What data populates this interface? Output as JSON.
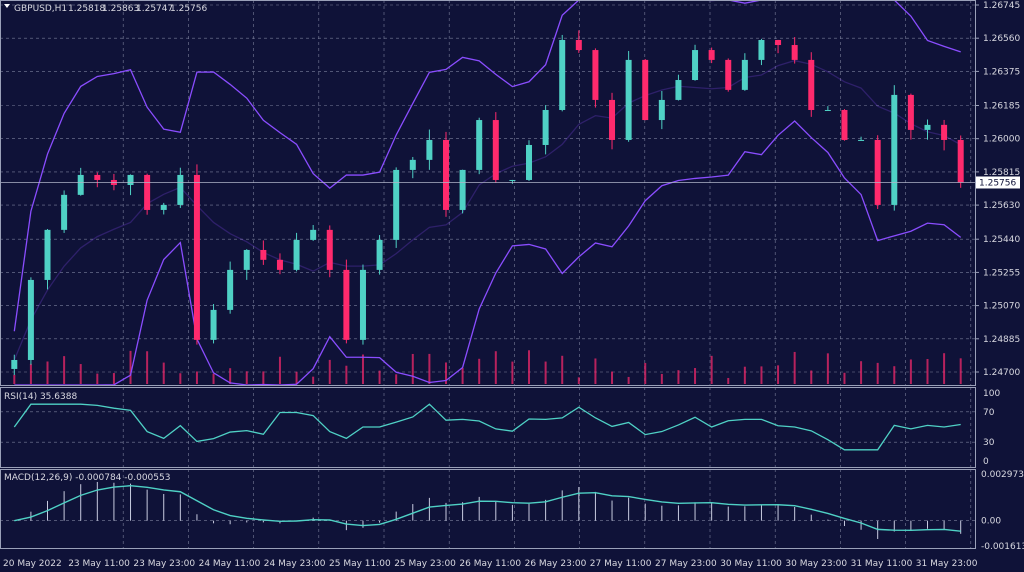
{
  "header": {
    "symbol": "GBPUSD,H1",
    "open": "1.25818",
    "high": "1.25863",
    "low": "1.25747",
    "close": "1.25756"
  },
  "colors": {
    "background": "#0f1238",
    "bull": "#4fd1c5",
    "bear": "#ff2a6d",
    "bands": "#8a4dff",
    "grid": "#7a7f9a",
    "rsi": "#4fd1c5",
    "macd": "#4fd1c5",
    "text": "#d8d8e0"
  },
  "chart_data": {
    "type": "candlestick",
    "price_axis": {
      "ticks": [
        "1.26745",
        "1.26560",
        "1.26375",
        "1.26185",
        "1.26000",
        "1.25815",
        "1.25630",
        "1.25440",
        "1.25255",
        "1.25070",
        "1.24885",
        "1.24700"
      ],
      "range": [
        1.247,
        1.26745
      ],
      "current_price": "1.25756"
    },
    "closes": [
      1.24767,
      1.25213,
      1.25492,
      1.25687,
      1.25798,
      1.2577,
      1.25742,
      1.25798,
      1.25603,
      1.25631,
      1.25798,
      1.24879,
      1.25046,
      1.25269,
      1.2538,
      1.25325,
      1.25269,
      1.25436,
      1.25492,
      1.25269,
      1.24879,
      1.25269,
      1.25436,
      1.25826,
      1.25882,
      1.25993,
      1.25603,
      1.25826,
      1.26104,
      1.2577,
      1.2577,
      1.25965,
      1.2616,
      1.2655,
      1.26494,
      1.26216,
      1.25993,
      1.26439,
      1.26104,
      1.26216,
      1.26327,
      1.26494,
      1.26439,
      1.26272,
      1.26439,
      1.2655,
      1.26522,
      1.26439,
      1.2616,
      1.2616,
      1.25993,
      1.25993,
      1.25631,
      1.26244,
      1.26049,
      1.26077,
      1.25993,
      1.25756
    ],
    "x_labels": [
      "20 May 2022",
      "23 May 11:00",
      "23 May 23:00",
      "24 May 11:00",
      "24 May 23:00",
      "25 May 11:00",
      "25 May 23:00",
      "26 May 11:00",
      "26 May 23:00",
      "27 May 11:00",
      "27 May 23:00",
      "30 May 11:00",
      "30 May 23:00",
      "31 May 11:00",
      "31 May 23:00"
    ],
    "indicators": [
      "Bollinger Bands",
      "Volumes"
    ],
    "rsi": {
      "label": "RSI(14) 35.6388",
      "ticks": [
        "100",
        "70",
        "30",
        "0"
      ],
      "levels": [
        70,
        30
      ]
    },
    "macd": {
      "label": "MACD(12,26,9) -0.000784 -0.000553",
      "ticks": [
        "0.002973",
        "0.00",
        "-0.001613"
      ],
      "range": [
        -0.001613,
        0.002973
      ]
    }
  }
}
